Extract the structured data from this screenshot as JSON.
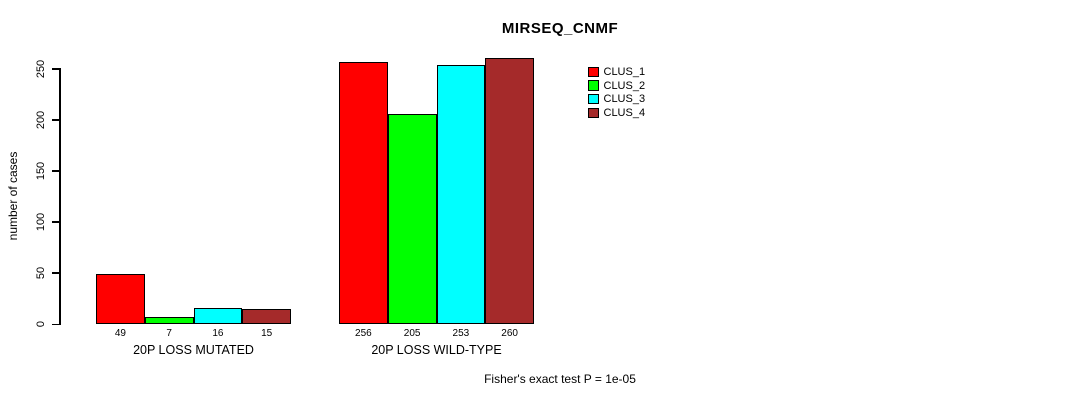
{
  "chart_data": {
    "type": "bar",
    "title": "MIRSEQ_CNMF",
    "ylabel": "number of cases",
    "xlabel": "",
    "ylim": [
      0,
      250
    ],
    "yticks": [
      0,
      50,
      100,
      150,
      200,
      250
    ],
    "categories": [
      "20P LOSS MUTATED",
      "20P LOSS WILD-TYPE"
    ],
    "series": [
      {
        "name": "CLUS_1",
        "color": "#FF0000",
        "values": [
          49,
          256
        ]
      },
      {
        "name": "CLUS_2",
        "color": "#00FF00",
        "values": [
          7,
          205
        ]
      },
      {
        "name": "CLUS_3",
        "color": "#00FFFF",
        "values": [
          16,
          253
        ]
      },
      {
        "name": "CLUS_4",
        "color": "#A52A2A",
        "values": [
          15,
          260
        ]
      }
    ],
    "bar_value_labels": true,
    "legend_position": "top-right",
    "grid": false,
    "footer": "Fisher's exact test P = 1e-05"
  }
}
